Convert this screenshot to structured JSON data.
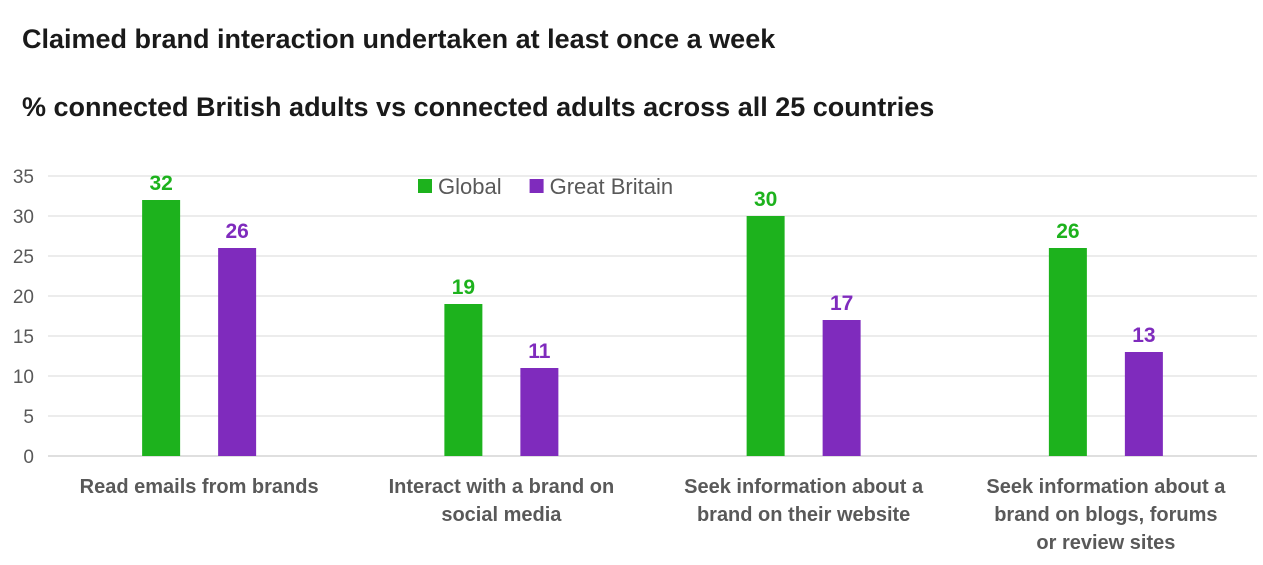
{
  "title": "Claimed brand interaction undertaken at least once a week",
  "subtitle": "% connected British adults vs connected adults across all 25 countries",
  "chart_data": {
    "type": "bar",
    "categories": [
      [
        "Read emails from brands"
      ],
      [
        "Interact with a brand on",
        "social media"
      ],
      [
        "Seek information about a",
        "brand on their website"
      ],
      [
        "Seek information about a",
        "brand on blogs, forums",
        "or review sites"
      ]
    ],
    "series": [
      {
        "name": "Global",
        "color": "#1db21d",
        "values": [
          32,
          19,
          30,
          26
        ]
      },
      {
        "name": "Great Britain",
        "color": "#7f2bbd",
        "values": [
          26,
          11,
          17,
          13
        ]
      }
    ],
    "ylim": [
      0,
      35
    ],
    "yticks": [
      0,
      5,
      10,
      15,
      20,
      25,
      30,
      35
    ],
    "grid": true,
    "legend_position": "top-center",
    "data_labels": true
  }
}
